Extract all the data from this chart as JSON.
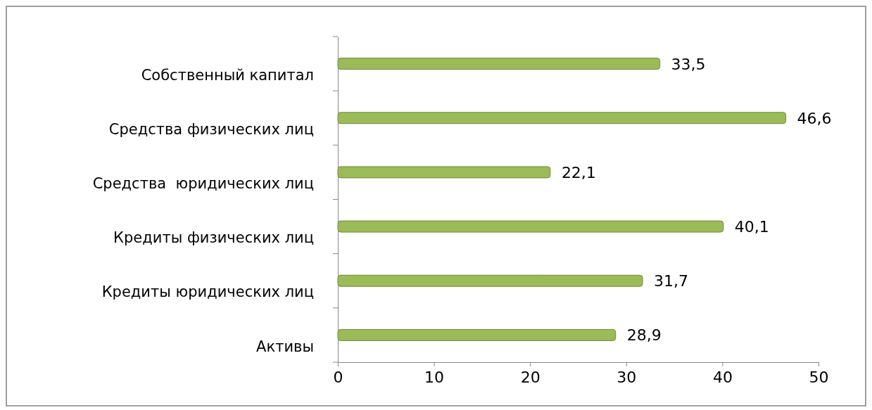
{
  "chart_data": {
    "type": "bar",
    "orientation": "horizontal",
    "categories": [
      "Собственный капитал",
      "Средства физических лиц",
      "Средства  юридических лиц",
      "Кредиты физических лиц",
      "Кредиты юридических лиц",
      "Активы"
    ],
    "values": [
      33.5,
      46.6,
      22.1,
      40.1,
      31.7,
      28.9
    ],
    "value_labels": [
      "33,5",
      "46,6",
      "22,1",
      "40,1",
      "31,7",
      "28,9"
    ],
    "color": "#9bbb59",
    "xlim": [
      0,
      50
    ],
    "xticks": [
      0,
      10,
      20,
      30,
      40,
      50
    ]
  }
}
